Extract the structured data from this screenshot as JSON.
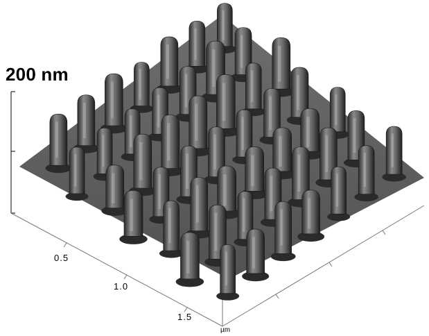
{
  "image": {
    "kind": "afm-3d-topography",
    "surface_color": "#5a5a5a",
    "pillar_grid": "7x7 hexagonally packed nanopillars",
    "z_scale_label": "200 nm",
    "axis_tick_labels": [
      "0.5",
      "1.0",
      "1.5"
    ],
    "axis_unit_label": "µm"
  }
}
